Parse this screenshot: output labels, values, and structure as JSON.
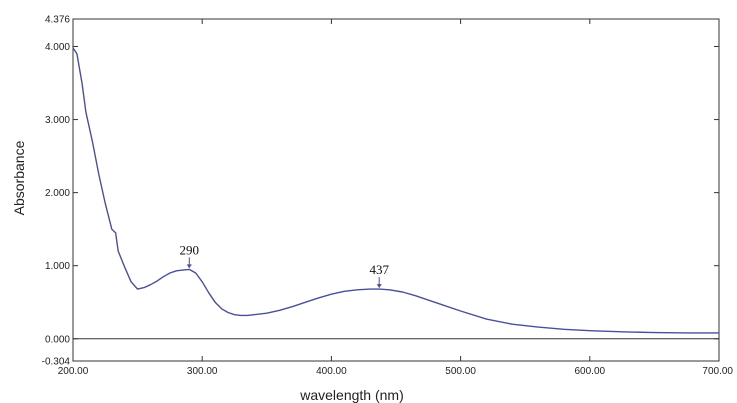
{
  "chart_data": {
    "type": "line",
    "xlabel": "wavelength (nm)",
    "ylabel": "Absorbance",
    "xlim": [
      200,
      700
    ],
    "ylim": [
      -0.304,
      4.376
    ],
    "x_ticks": [
      {
        "value": 200,
        "label": "200.00"
      },
      {
        "value": 300,
        "label": "300.00"
      },
      {
        "value": 400,
        "label": "400.00"
      },
      {
        "value": 500,
        "label": "500.00"
      },
      {
        "value": 600,
        "label": "600.00"
      },
      {
        "value": 700,
        "label": "700.00"
      }
    ],
    "y_ticks": [
      {
        "value": 4.376,
        "label": "4.376"
      },
      {
        "value": 4.0,
        "label": "4.000"
      },
      {
        "value": 3.0,
        "label": "3.000"
      },
      {
        "value": 2.0,
        "label": "2.000"
      },
      {
        "value": 1.0,
        "label": "1.000"
      },
      {
        "value": 0.0,
        "label": "0.000"
      },
      {
        "value": -0.304,
        "label": "-0.304"
      }
    ],
    "zero_line": 0,
    "grid": false,
    "line_color": "#4b4f9a",
    "series": [
      {
        "x": [
          200,
          203,
          207,
          210,
          215,
          220,
          225,
          230,
          233,
          235,
          240,
          245,
          250,
          255,
          260,
          265,
          270,
          275,
          280,
          285,
          290,
          295,
          300,
          305,
          310,
          315,
          320,
          325,
          330,
          335,
          340,
          350,
          360,
          370,
          380,
          390,
          400,
          410,
          420,
          430,
          437,
          445,
          455,
          465,
          475,
          485,
          500,
          520,
          540,
          560,
          580,
          600,
          625,
          650,
          675,
          700
        ],
        "y": [
          3.98,
          3.9,
          3.5,
          3.1,
          2.7,
          2.25,
          1.85,
          1.5,
          1.45,
          1.2,
          0.98,
          0.78,
          0.68,
          0.7,
          0.74,
          0.79,
          0.85,
          0.9,
          0.93,
          0.94,
          0.95,
          0.9,
          0.78,
          0.63,
          0.5,
          0.41,
          0.36,
          0.33,
          0.32,
          0.32,
          0.33,
          0.35,
          0.39,
          0.44,
          0.5,
          0.56,
          0.61,
          0.65,
          0.67,
          0.68,
          0.68,
          0.67,
          0.64,
          0.59,
          0.53,
          0.47,
          0.38,
          0.27,
          0.2,
          0.16,
          0.13,
          0.11,
          0.095,
          0.085,
          0.08,
          0.08
        ]
      }
    ],
    "annotations": [
      {
        "x": 290,
        "y": 0.95,
        "label": "290"
      },
      {
        "x": 437,
        "y": 0.68,
        "label": "437"
      }
    ]
  }
}
